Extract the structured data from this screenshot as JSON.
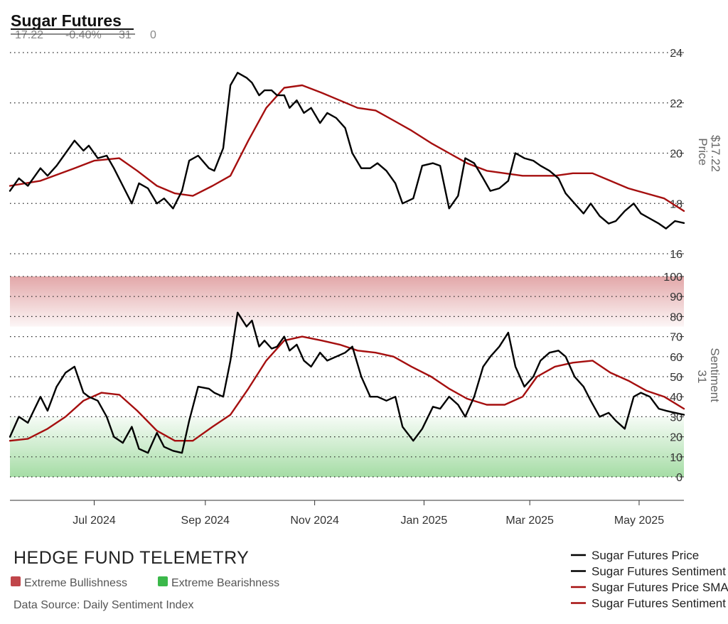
{
  "header": {
    "title": "Sugar Futures",
    "stats": [
      "17.22",
      "-0.40%",
      "31",
      "0"
    ]
  },
  "branding": {
    "name": "HEDGE FUND TELEMETRY",
    "source": "Data Source: Daily Sentiment Index",
    "zones": [
      {
        "label": "Extreme Bullishness",
        "color": "#c0464a"
      },
      {
        "label": "Extreme Bearishness",
        "color": "#3bb84a"
      }
    ]
  },
  "colors": {
    "price": "#000000",
    "sentiment": "#000000",
    "sma": "#a50f0f",
    "grid": "#222222",
    "bull_zone": "#d98a8c",
    "bear_zone": "#8fd48f"
  },
  "chart_data": [
    {
      "type": "line",
      "axis_label": [
        "Price",
        "$17.22"
      ],
      "ylim": [
        16,
        24
      ],
      "yticks": [
        16,
        18,
        20,
        22,
        24
      ],
      "grid": true,
      "series": [
        {
          "name": "Sugar Futures Price",
          "x": [
            "2024-05-15",
            "2024-05-20",
            "2024-05-25",
            "2024-06-01",
            "2024-06-05",
            "2024-06-10",
            "2024-06-15",
            "2024-06-20",
            "2024-06-25",
            "2024-06-28",
            "2024-07-03",
            "2024-07-08",
            "2024-07-12",
            "2024-07-17",
            "2024-07-22",
            "2024-07-26",
            "2024-07-31",
            "2024-08-05",
            "2024-08-09",
            "2024-08-14",
            "2024-08-19",
            "2024-08-23",
            "2024-08-28",
            "2024-09-03",
            "2024-09-06",
            "2024-09-11",
            "2024-09-15",
            "2024-09-19",
            "2024-09-24",
            "2024-09-27",
            "2024-10-01",
            "2024-10-04",
            "2024-10-08",
            "2024-10-11",
            "2024-10-15",
            "2024-10-18",
            "2024-10-22",
            "2024-10-26",
            "2024-10-30",
            "2024-11-04",
            "2024-11-08",
            "2024-11-13",
            "2024-11-18",
            "2024-11-22",
            "2024-11-27",
            "2024-12-02",
            "2024-12-06",
            "2024-12-11",
            "2024-12-16",
            "2024-12-20",
            "2024-12-26",
            "2024-12-31",
            "2025-01-06",
            "2025-01-10",
            "2025-01-15",
            "2025-01-20",
            "2025-01-24",
            "2025-01-29",
            "2025-02-03",
            "2025-02-07",
            "2025-02-12",
            "2025-02-17",
            "2025-02-21",
            "2025-02-26",
            "2025-03-03",
            "2025-03-07",
            "2025-03-12",
            "2025-03-17",
            "2025-03-21",
            "2025-03-26",
            "2025-03-31",
            "2025-04-04",
            "2025-04-09",
            "2025-04-14",
            "2025-04-18",
            "2025-04-23",
            "2025-04-28",
            "2025-05-02",
            "2025-05-07",
            "2025-05-12",
            "2025-05-16",
            "2025-05-21",
            "2025-05-26"
          ],
          "values": [
            18.5,
            19.0,
            18.7,
            19.4,
            19.1,
            19.5,
            20.0,
            20.5,
            20.1,
            20.3,
            19.8,
            19.9,
            19.4,
            18.7,
            18.0,
            18.8,
            18.6,
            18.0,
            18.2,
            17.8,
            18.5,
            19.7,
            19.9,
            19.4,
            19.3,
            20.2,
            22.7,
            23.2,
            23.0,
            22.8,
            22.3,
            22.5,
            22.5,
            22.3,
            22.3,
            21.8,
            22.1,
            21.6,
            21.8,
            21.2,
            21.6,
            21.4,
            21.0,
            20.0,
            19.4,
            19.4,
            19.6,
            19.3,
            18.8,
            18.0,
            18.2,
            19.5,
            19.6,
            19.5,
            17.8,
            18.3,
            19.8,
            19.6,
            19.0,
            18.5,
            18.6,
            18.9,
            20.0,
            19.8,
            19.7,
            19.5,
            19.3,
            19.0,
            18.4,
            18.0,
            17.6,
            18.0,
            17.5,
            17.2,
            17.3,
            17.7,
            18.0,
            17.6,
            17.4,
            17.2,
            17.0,
            17.3,
            17.22
          ]
        },
        {
          "name": "Sugar Futures Price SMA",
          "x": [
            "2024-05-15",
            "2024-06-01",
            "2024-06-20",
            "2024-07-01",
            "2024-07-15",
            "2024-07-25",
            "2024-08-05",
            "2024-08-15",
            "2024-08-25",
            "2024-09-05",
            "2024-09-15",
            "2024-09-25",
            "2024-10-05",
            "2024-10-15",
            "2024-10-25",
            "2024-11-05",
            "2024-11-15",
            "2024-11-25",
            "2024-12-05",
            "2024-12-15",
            "2024-12-25",
            "2025-01-05",
            "2025-01-15",
            "2025-01-25",
            "2025-02-05",
            "2025-02-15",
            "2025-02-25",
            "2025-03-05",
            "2025-03-15",
            "2025-03-25",
            "2025-04-05",
            "2025-04-15",
            "2025-04-25",
            "2025-05-05",
            "2025-05-15",
            "2025-05-26"
          ],
          "values": [
            18.7,
            18.9,
            19.4,
            19.7,
            19.8,
            19.3,
            18.7,
            18.4,
            18.3,
            18.7,
            19.1,
            20.5,
            21.8,
            22.6,
            22.7,
            22.4,
            22.1,
            21.8,
            21.7,
            21.3,
            20.9,
            20.4,
            20.0,
            19.6,
            19.3,
            19.2,
            19.1,
            19.1,
            19.1,
            19.2,
            19.2,
            18.9,
            18.6,
            18.4,
            18.2,
            17.7
          ]
        }
      ]
    },
    {
      "type": "line",
      "axis_label": [
        "Sentiment",
        "31"
      ],
      "ylim": [
        0,
        100
      ],
      "yticks": [
        0,
        10,
        20,
        30,
        40,
        50,
        60,
        70,
        80,
        90,
        100
      ],
      "zones": {
        "bull_from": 75,
        "bear_to": 30
      },
      "grid": true,
      "xticks": [
        "Jul 2024",
        "Sep 2024",
        "Nov 2024",
        "Jan 2025",
        "Mar 2025",
        "May 2025"
      ],
      "series": [
        {
          "name": "Sugar Futures Sentiment",
          "x": [
            "2024-05-15",
            "2024-05-20",
            "2024-05-25",
            "2024-06-01",
            "2024-06-05",
            "2024-06-10",
            "2024-06-15",
            "2024-06-20",
            "2024-06-25",
            "2024-06-28",
            "2024-07-03",
            "2024-07-08",
            "2024-07-12",
            "2024-07-17",
            "2024-07-22",
            "2024-07-26",
            "2024-07-31",
            "2024-08-05",
            "2024-08-09",
            "2024-08-14",
            "2024-08-19",
            "2024-08-23",
            "2024-08-28",
            "2024-09-03",
            "2024-09-06",
            "2024-09-11",
            "2024-09-15",
            "2024-09-19",
            "2024-09-24",
            "2024-09-27",
            "2024-10-01",
            "2024-10-04",
            "2024-10-08",
            "2024-10-11",
            "2024-10-15",
            "2024-10-18",
            "2024-10-22",
            "2024-10-26",
            "2024-10-30",
            "2024-11-04",
            "2024-11-08",
            "2024-11-13",
            "2024-11-18",
            "2024-11-22",
            "2024-11-27",
            "2024-12-02",
            "2024-12-06",
            "2024-12-11",
            "2024-12-16",
            "2024-12-20",
            "2024-12-26",
            "2024-12-31",
            "2025-01-06",
            "2025-01-10",
            "2025-01-15",
            "2025-01-20",
            "2025-01-24",
            "2025-01-29",
            "2025-02-03",
            "2025-02-07",
            "2025-02-12",
            "2025-02-17",
            "2025-02-21",
            "2025-02-26",
            "2025-03-03",
            "2025-03-07",
            "2025-03-12",
            "2025-03-17",
            "2025-03-21",
            "2025-03-26",
            "2025-03-31",
            "2025-04-04",
            "2025-04-09",
            "2025-04-14",
            "2025-04-18",
            "2025-04-23",
            "2025-04-28",
            "2025-05-02",
            "2025-05-07",
            "2025-05-12",
            "2025-05-16",
            "2025-05-21",
            "2025-05-26"
          ],
          "values": [
            20,
            30,
            27,
            40,
            33,
            45,
            52,
            55,
            42,
            40,
            38,
            30,
            20,
            17,
            25,
            14,
            12,
            22,
            15,
            13,
            12,
            28,
            45,
            44,
            42,
            40,
            58,
            82,
            75,
            78,
            65,
            68,
            64,
            65,
            70,
            63,
            66,
            58,
            55,
            62,
            58,
            60,
            62,
            65,
            50,
            40,
            40,
            38,
            40,
            25,
            18,
            24,
            35,
            34,
            40,
            36,
            30,
            40,
            55,
            60,
            65,
            72,
            55,
            45,
            50,
            58,
            62,
            63,
            60,
            50,
            45,
            38,
            30,
            32,
            28,
            24,
            40,
            42,
            40,
            34,
            33,
            32,
            31
          ]
        },
        {
          "name": "Sugar Futures Sentiment SMA",
          "x": [
            "2024-05-15",
            "2024-05-25",
            "2024-06-05",
            "2024-06-15",
            "2024-06-25",
            "2024-07-05",
            "2024-07-15",
            "2024-07-25",
            "2024-08-05",
            "2024-08-15",
            "2024-08-25",
            "2024-09-05",
            "2024-09-15",
            "2024-09-25",
            "2024-10-05",
            "2024-10-15",
            "2024-10-25",
            "2024-11-05",
            "2024-11-15",
            "2024-11-25",
            "2024-12-05",
            "2024-12-15",
            "2024-12-25",
            "2025-01-05",
            "2025-01-15",
            "2025-01-25",
            "2025-02-05",
            "2025-02-15",
            "2025-02-25",
            "2025-03-05",
            "2025-03-15",
            "2025-03-25",
            "2025-04-05",
            "2025-04-15",
            "2025-04-25",
            "2025-05-05",
            "2025-05-15",
            "2025-05-26"
          ],
          "values": [
            18,
            19,
            24,
            30,
            38,
            42,
            41,
            33,
            23,
            18,
            18,
            25,
            31,
            44,
            58,
            68,
            70,
            68,
            66,
            63,
            62,
            60,
            55,
            50,
            44,
            39,
            36,
            36,
            40,
            50,
            55,
            57,
            58,
            52,
            48,
            43,
            40,
            34
          ]
        }
      ]
    }
  ],
  "legend": [
    {
      "label": "Sugar Futures Price",
      "color": "#000000"
    },
    {
      "label": "Sugar Futures Sentiment",
      "color": "#000000"
    },
    {
      "label": "Sugar Futures Price SMA",
      "color": "#a50f0f"
    },
    {
      "label": "Sugar Futures Sentiment SMA",
      "color": "#a50f0f"
    }
  ]
}
